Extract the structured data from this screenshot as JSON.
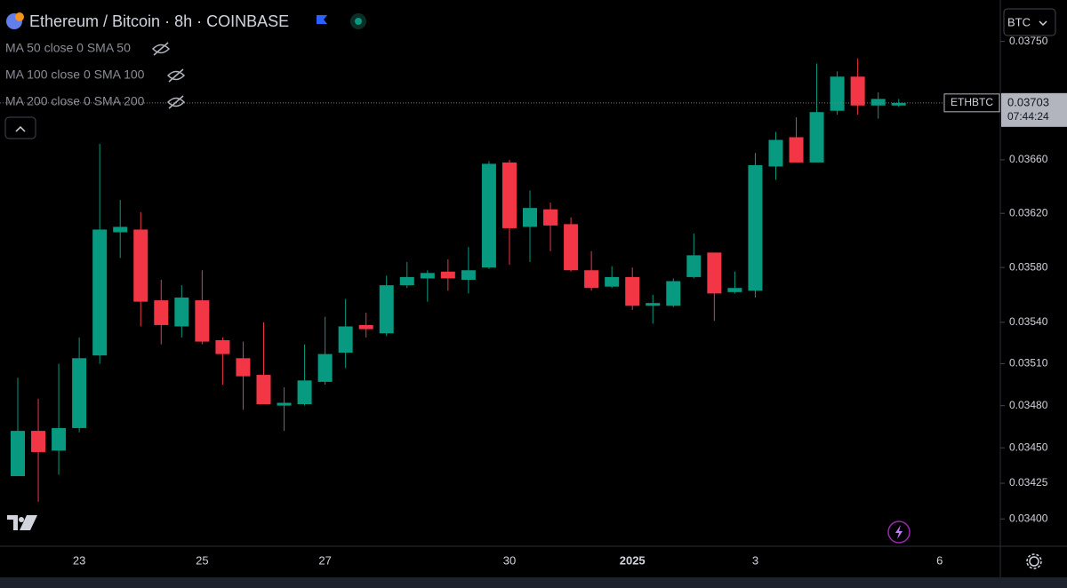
{
  "chart_data": {
    "type": "candlestick",
    "title": "Ethereum / Bitcoin · 8h · COINBASE",
    "indicators": [
      "MA 50 close 0 SMA 50",
      "MA 100 close 0 SMA 100",
      "MA 200 close 0 SMA 200"
    ],
    "currency": "BTC",
    "symbol": "ETHBTC",
    "last_price": 0.03703,
    "countdown": "07:44:24",
    "categories": [
      null,
      null,
      null,
      "23",
      null,
      null,
      null,
      null,
      null,
      "25",
      null,
      null,
      null,
      null,
      null,
      "27",
      null,
      null,
      null,
      null,
      null,
      null,
      null,
      null,
      "30",
      null,
      null,
      null,
      null,
      null,
      "2025",
      null,
      null,
      null,
      null,
      null,
      "3",
      null,
      null,
      null,
      null,
      null,
      null,
      null,
      null,
      "6"
    ],
    "open": [
      0.0343,
      0.03462,
      0.03448,
      0.03464,
      0.03516,
      0.03606,
      0.03608,
      0.03556,
      0.03537,
      0.03556,
      0.03527,
      0.03514,
      0.03502,
      0.0348,
      0.03481,
      0.03497,
      0.03518,
      0.03538,
      0.03532,
      0.03567,
      0.03572,
      0.03577,
      0.03571,
      0.0358,
      0.03658,
      0.0361,
      0.03623,
      0.03612,
      0.03578,
      0.03566,
      0.03573,
      0.03552,
      0.03552,
      0.03573,
      0.03591,
      0.03562,
      0.03563,
      0.03655,
      0.03677,
      0.03658,
      0.03697,
      0.03723,
      0.03701,
      0.03701,
      null,
      null
    ],
    "high": [
      0.035,
      0.03485,
      0.0351,
      0.03529,
      0.03672,
      0.0363,
      0.03621,
      0.03571,
      0.03567,
      0.03578,
      0.03529,
      0.03526,
      0.0354,
      0.03493,
      0.03524,
      0.03544,
      0.03557,
      0.03547,
      0.03574,
      0.03584,
      0.03578,
      0.03586,
      0.03595,
      0.03659,
      0.0366,
      0.03637,
      0.03628,
      0.03617,
      0.03592,
      0.03581,
      0.0358,
      0.0356,
      0.03572,
      0.03605,
      0.03591,
      0.03577,
      0.03665,
      0.03681,
      0.03692,
      0.03733,
      0.03727,
      0.03737,
      0.03711,
      0.03706,
      null,
      null
    ],
    "low": [
      0.0343,
      0.03412,
      0.03431,
      0.03461,
      0.0351,
      0.03587,
      0.03537,
      0.03524,
      0.03529,
      0.03524,
      0.03495,
      0.03477,
      0.03481,
      0.03462,
      0.0348,
      0.03495,
      0.03507,
      0.03529,
      0.0353,
      0.03565,
      0.03555,
      0.03563,
      0.03561,
      0.03579,
      0.03582,
      0.03584,
      0.03592,
      0.03577,
      0.03563,
      0.03565,
      0.03549,
      0.03539,
      0.03551,
      0.03572,
      0.03541,
      0.03561,
      0.03558,
      0.03645,
      0.03658,
      0.03658,
      0.03694,
      0.03694,
      0.03691,
      0.037,
      null,
      null
    ],
    "close": [
      0.03462,
      0.03447,
      0.03464,
      0.03514,
      0.03608,
      0.0361,
      0.03555,
      0.03538,
      0.03558,
      0.03526,
      0.03517,
      0.03501,
      0.03481,
      0.03482,
      0.03498,
      0.03517,
      0.03537,
      0.03535,
      0.03567,
      0.03573,
      0.03576,
      0.03572,
      0.03578,
      0.03657,
      0.03609,
      0.03624,
      0.03611,
      0.03578,
      0.03565,
      0.03573,
      0.03552,
      0.03554,
      0.0357,
      0.03589,
      0.03561,
      0.03565,
      0.03656,
      0.03675,
      0.03658,
      0.03696,
      0.03723,
      0.03701,
      0.03706,
      0.03703,
      null,
      null
    ],
    "up_color": "#089981",
    "down_color": "#f23645",
    "log_scale": true,
    "ylim": [
      0.03381,
      0.03782
    ],
    "yticks": [
      {
        "value": 0.034,
        "label": "0.03400"
      },
      0.03425,
      {
        "value": 0.0345,
        "label": "0.03450"
      },
      {
        "value": 0.0348,
        "label": "0.03480"
      },
      {
        "value": 0.0351,
        "label": "0.03510"
      },
      {
        "value": 0.0354,
        "label": "0.03540"
      },
      {
        "value": 0.0358,
        "label": "0.03580"
      },
      {
        "value": 0.0362,
        "label": "0.03620"
      },
      {
        "value": 0.0366,
        "label": "0.03660"
      },
      {
        "value": 0.0375,
        "label": "0.03750"
      }
    ]
  }
}
